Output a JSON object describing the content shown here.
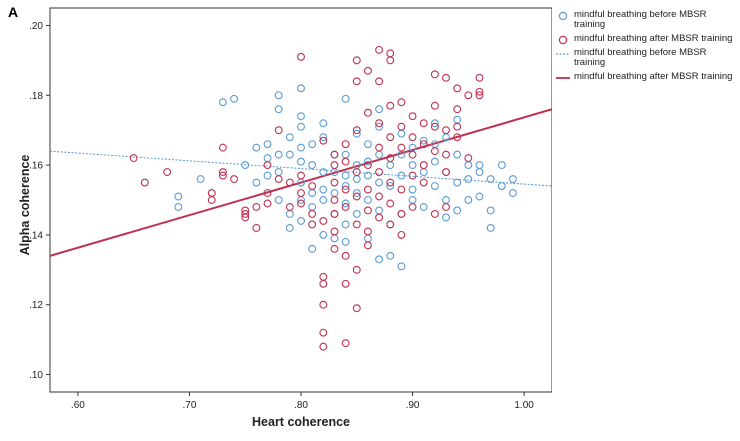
{
  "panel_label": "A",
  "chart_data": {
    "type": "scatter",
    "xlabel": "Heart coherence",
    "ylabel": "Alpha coherence",
    "xlim": [
      0.575,
      1.025
    ],
    "ylim": [
      0.095,
      0.205
    ],
    "x_ticks": [
      0.6,
      0.7,
      0.8,
      0.9,
      1.0
    ],
    "x_tick_labels": [
      ".60",
      ".70",
      ".80",
      ".90",
      "1.00"
    ],
    "y_ticks": [
      0.1,
      0.12,
      0.14,
      0.16,
      0.18,
      0.2
    ],
    "y_tick_labels": [
      ".10",
      ".12",
      ".14",
      ".16",
      ".18",
      ".20"
    ],
    "grid": false,
    "legend_position": "top-right",
    "legend": [
      {
        "label": "mindful breathing before MBSR training",
        "kind": "marker",
        "color": "#5b9bd5"
      },
      {
        "label": "mindful breathing after MBSR training",
        "kind": "marker",
        "color": "#c0304f"
      },
      {
        "label": "mindful breathing before MBSR training",
        "kind": "dotted-line",
        "color": "#5b9bd5"
      },
      {
        "label": "mindful breathing after MBSR training",
        "kind": "solid-line",
        "color": "#c0304f"
      }
    ],
    "series": [
      {
        "name": "mindful breathing before MBSR training",
        "color": "#5b9bd5",
        "fit": {
          "x": [
            0.575,
            1.025
          ],
          "y": [
            0.164,
            0.154
          ]
        },
        "points": [
          [
            0.69,
            0.151
          ],
          [
            0.69,
            0.148
          ],
          [
            0.71,
            0.156
          ],
          [
            0.72,
            0.152
          ],
          [
            0.73,
            0.178
          ],
          [
            0.74,
            0.179
          ],
          [
            0.75,
            0.16
          ],
          [
            0.76,
            0.155
          ],
          [
            0.76,
            0.165
          ],
          [
            0.77,
            0.162
          ],
          [
            0.77,
            0.157
          ],
          [
            0.77,
            0.166
          ],
          [
            0.78,
            0.18
          ],
          [
            0.78,
            0.176
          ],
          [
            0.78,
            0.163
          ],
          [
            0.78,
            0.158
          ],
          [
            0.78,
            0.15
          ],
          [
            0.79,
            0.168
          ],
          [
            0.79,
            0.163
          ],
          [
            0.79,
            0.146
          ],
          [
            0.79,
            0.142
          ],
          [
            0.8,
            0.182
          ],
          [
            0.8,
            0.174
          ],
          [
            0.8,
            0.171
          ],
          [
            0.8,
            0.165
          ],
          [
            0.8,
            0.161
          ],
          [
            0.8,
            0.155
          ],
          [
            0.8,
            0.15
          ],
          [
            0.8,
            0.144
          ],
          [
            0.81,
            0.166
          ],
          [
            0.81,
            0.16
          ],
          [
            0.81,
            0.152
          ],
          [
            0.81,
            0.148
          ],
          [
            0.81,
            0.136
          ],
          [
            0.82,
            0.172
          ],
          [
            0.82,
            0.168
          ],
          [
            0.82,
            0.158
          ],
          [
            0.82,
            0.153
          ],
          [
            0.82,
            0.15
          ],
          [
            0.82,
            0.14
          ],
          [
            0.83,
            0.163
          ],
          [
            0.83,
            0.158
          ],
          [
            0.83,
            0.152
          ],
          [
            0.83,
            0.146
          ],
          [
            0.83,
            0.139
          ],
          [
            0.84,
            0.179
          ],
          [
            0.84,
            0.163
          ],
          [
            0.84,
            0.157
          ],
          [
            0.84,
            0.154
          ],
          [
            0.84,
            0.149
          ],
          [
            0.84,
            0.143
          ],
          [
            0.84,
            0.138
          ],
          [
            0.85,
            0.169
          ],
          [
            0.85,
            0.16
          ],
          [
            0.85,
            0.156
          ],
          [
            0.85,
            0.152
          ],
          [
            0.85,
            0.146
          ],
          [
            0.86,
            0.166
          ],
          [
            0.86,
            0.161
          ],
          [
            0.86,
            0.157
          ],
          [
            0.86,
            0.15
          ],
          [
            0.86,
            0.139
          ],
          [
            0.87,
            0.176
          ],
          [
            0.87,
            0.171
          ],
          [
            0.87,
            0.163
          ],
          [
            0.87,
            0.155
          ],
          [
            0.87,
            0.147
          ],
          [
            0.87,
            0.133
          ],
          [
            0.88,
            0.16
          ],
          [
            0.88,
            0.154
          ],
          [
            0.88,
            0.143
          ],
          [
            0.88,
            0.134
          ],
          [
            0.89,
            0.169
          ],
          [
            0.89,
            0.163
          ],
          [
            0.89,
            0.157
          ],
          [
            0.89,
            0.146
          ],
          [
            0.89,
            0.131
          ],
          [
            0.9,
            0.165
          ],
          [
            0.9,
            0.16
          ],
          [
            0.9,
            0.153
          ],
          [
            0.9,
            0.15
          ],
          [
            0.91,
            0.167
          ],
          [
            0.91,
            0.158
          ],
          [
            0.91,
            0.148
          ],
          [
            0.92,
            0.172
          ],
          [
            0.92,
            0.166
          ],
          [
            0.92,
            0.161
          ],
          [
            0.92,
            0.154
          ],
          [
            0.93,
            0.168
          ],
          [
            0.93,
            0.158
          ],
          [
            0.93,
            0.15
          ],
          [
            0.93,
            0.145
          ],
          [
            0.94,
            0.173
          ],
          [
            0.94,
            0.163
          ],
          [
            0.94,
            0.155
          ],
          [
            0.94,
            0.147
          ],
          [
            0.95,
            0.16
          ],
          [
            0.95,
            0.156
          ],
          [
            0.95,
            0.15
          ],
          [
            0.96,
            0.158
          ],
          [
            0.96,
            0.151
          ],
          [
            0.96,
            0.16
          ],
          [
            0.97,
            0.156
          ],
          [
            0.97,
            0.147
          ],
          [
            0.97,
            0.142
          ],
          [
            0.98,
            0.16
          ],
          [
            0.98,
            0.154
          ],
          [
            0.99,
            0.156
          ],
          [
            0.99,
            0.152
          ]
        ]
      },
      {
        "name": "mindful breathing after MBSR training",
        "color": "#c0304f",
        "fit": {
          "x": [
            0.575,
            1.025
          ],
          "y": [
            0.134,
            0.176
          ]
        },
        "points": [
          [
            0.65,
            0.162
          ],
          [
            0.66,
            0.155
          ],
          [
            0.68,
            0.158
          ],
          [
            0.72,
            0.15
          ],
          [
            0.72,
            0.152
          ],
          [
            0.73,
            0.158
          ],
          [
            0.73,
            0.157
          ],
          [
            0.73,
            0.165
          ],
          [
            0.74,
            0.156
          ],
          [
            0.75,
            0.147
          ],
          [
            0.75,
            0.146
          ],
          [
            0.75,
            0.145
          ],
          [
            0.76,
            0.142
          ],
          [
            0.76,
            0.148
          ],
          [
            0.77,
            0.152
          ],
          [
            0.77,
            0.16
          ],
          [
            0.77,
            0.149
          ],
          [
            0.78,
            0.17
          ],
          [
            0.78,
            0.156
          ],
          [
            0.79,
            0.155
          ],
          [
            0.79,
            0.148
          ],
          [
            0.8,
            0.191
          ],
          [
            0.8,
            0.152
          ],
          [
            0.8,
            0.157
          ],
          [
            0.8,
            0.149
          ],
          [
            0.81,
            0.154
          ],
          [
            0.81,
            0.146
          ],
          [
            0.81,
            0.143
          ],
          [
            0.82,
            0.167
          ],
          [
            0.82,
            0.144
          ],
          [
            0.82,
            0.128
          ],
          [
            0.82,
            0.126
          ],
          [
            0.82,
            0.12
          ],
          [
            0.82,
            0.112
          ],
          [
            0.82,
            0.108
          ],
          [
            0.83,
            0.163
          ],
          [
            0.83,
            0.16
          ],
          [
            0.83,
            0.155
          ],
          [
            0.83,
            0.15
          ],
          [
            0.83,
            0.146
          ],
          [
            0.83,
            0.141
          ],
          [
            0.83,
            0.136
          ],
          [
            0.84,
            0.166
          ],
          [
            0.84,
            0.161
          ],
          [
            0.84,
            0.153
          ],
          [
            0.84,
            0.148
          ],
          [
            0.84,
            0.134
          ],
          [
            0.84,
            0.126
          ],
          [
            0.84,
            0.109
          ],
          [
            0.85,
            0.19
          ],
          [
            0.85,
            0.184
          ],
          [
            0.85,
            0.17
          ],
          [
            0.85,
            0.158
          ],
          [
            0.85,
            0.151
          ],
          [
            0.85,
            0.143
          ],
          [
            0.85,
            0.13
          ],
          [
            0.85,
            0.119
          ],
          [
            0.86,
            0.187
          ],
          [
            0.86,
            0.175
          ],
          [
            0.86,
            0.16
          ],
          [
            0.86,
            0.153
          ],
          [
            0.86,
            0.147
          ],
          [
            0.86,
            0.141
          ],
          [
            0.86,
            0.137
          ],
          [
            0.87,
            0.193
          ],
          [
            0.87,
            0.184
          ],
          [
            0.87,
            0.172
          ],
          [
            0.87,
            0.165
          ],
          [
            0.87,
            0.158
          ],
          [
            0.87,
            0.151
          ],
          [
            0.87,
            0.145
          ],
          [
            0.88,
            0.192
          ],
          [
            0.88,
            0.19
          ],
          [
            0.88,
            0.177
          ],
          [
            0.88,
            0.168
          ],
          [
            0.88,
            0.162
          ],
          [
            0.88,
            0.155
          ],
          [
            0.88,
            0.149
          ],
          [
            0.88,
            0.143
          ],
          [
            0.89,
            0.178
          ],
          [
            0.89,
            0.171
          ],
          [
            0.89,
            0.165
          ],
          [
            0.89,
            0.153
          ],
          [
            0.89,
            0.146
          ],
          [
            0.89,
            0.14
          ],
          [
            0.9,
            0.174
          ],
          [
            0.9,
            0.168
          ],
          [
            0.9,
            0.163
          ],
          [
            0.9,
            0.157
          ],
          [
            0.9,
            0.148
          ],
          [
            0.91,
            0.172
          ],
          [
            0.91,
            0.166
          ],
          [
            0.91,
            0.16
          ],
          [
            0.91,
            0.155
          ],
          [
            0.92,
            0.186
          ],
          [
            0.92,
            0.177
          ],
          [
            0.92,
            0.171
          ],
          [
            0.92,
            0.164
          ],
          [
            0.92,
            0.146
          ],
          [
            0.93,
            0.185
          ],
          [
            0.93,
            0.17
          ],
          [
            0.93,
            0.163
          ],
          [
            0.93,
            0.158
          ],
          [
            0.93,
            0.148
          ],
          [
            0.94,
            0.182
          ],
          [
            0.94,
            0.176
          ],
          [
            0.94,
            0.171
          ],
          [
            0.94,
            0.168
          ],
          [
            0.95,
            0.18
          ],
          [
            0.95,
            0.162
          ],
          [
            0.96,
            0.185
          ],
          [
            0.96,
            0.181
          ],
          [
            0.96,
            0.18
          ]
        ]
      }
    ]
  }
}
